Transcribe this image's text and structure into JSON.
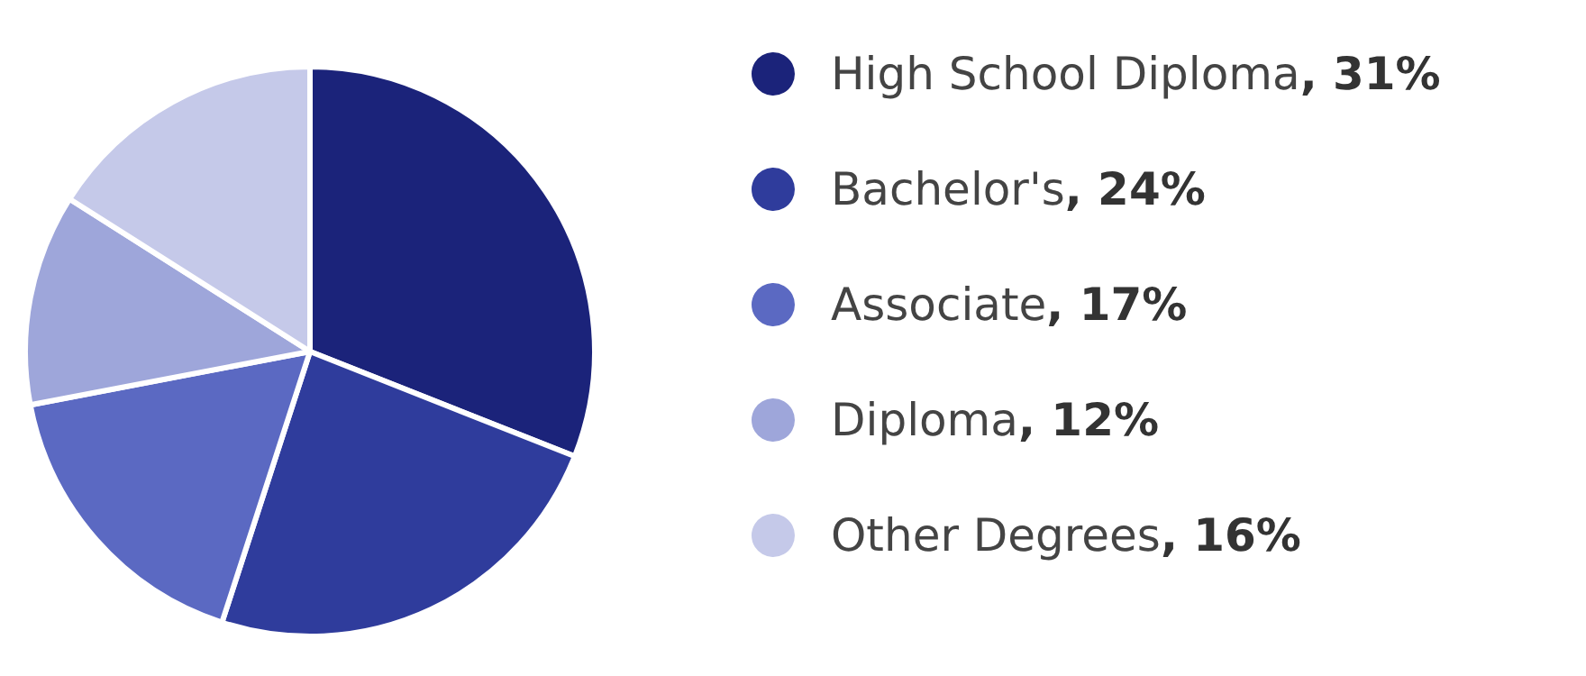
{
  "chart_data": {
    "type": "pie",
    "categories": [
      "High School Diploma",
      "Bachelor's",
      "Associate",
      "Diploma",
      "Other Degrees"
    ],
    "values": [
      31,
      24,
      17,
      12,
      16
    ],
    "value_labels": [
      ", 31%",
      ", 24%",
      ", 17%",
      ", 12%",
      ", 16%"
    ],
    "colors": [
      "#1b237a",
      "#2f3c9c",
      "#5b69c2",
      "#9ea6da",
      "#c5c9e9"
    ],
    "legend": "right"
  }
}
